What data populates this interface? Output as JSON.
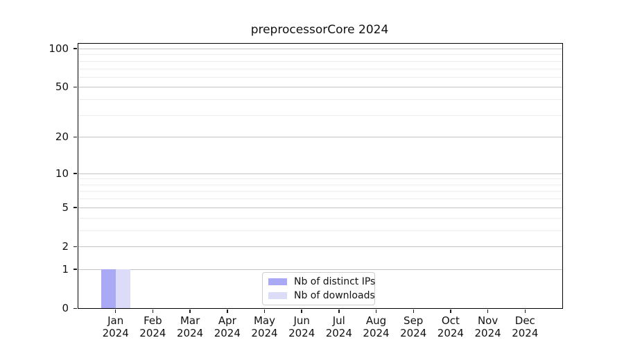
{
  "figure": {
    "background": "#ffffff"
  },
  "chart_data": {
    "type": "bar",
    "title": "preprocessorCore 2024",
    "categories": [
      {
        "month": "Jan",
        "year": "2024"
      },
      {
        "month": "Feb",
        "year": "2024"
      },
      {
        "month": "Mar",
        "year": "2024"
      },
      {
        "month": "Apr",
        "year": "2024"
      },
      {
        "month": "May",
        "year": "2024"
      },
      {
        "month": "Jun",
        "year": "2024"
      },
      {
        "month": "Jul",
        "year": "2024"
      },
      {
        "month": "Aug",
        "year": "2024"
      },
      {
        "month": "Sep",
        "year": "2024"
      },
      {
        "month": "Oct",
        "year": "2024"
      },
      {
        "month": "Nov",
        "year": "2024"
      },
      {
        "month": "Dec",
        "year": "2024"
      }
    ],
    "series": [
      {
        "name": "Nb of distinct IPs",
        "color": "#a9a9f5",
        "values": [
          1,
          0,
          0,
          0,
          0,
          0,
          0,
          0,
          0,
          0,
          0,
          0
        ]
      },
      {
        "name": "Nb of downloads",
        "color": "#dcdcf8",
        "values": [
          1,
          0,
          0,
          0,
          0,
          0,
          0,
          0,
          0,
          0,
          0,
          0
        ]
      }
    ],
    "y_axis": {
      "scale": "log1p",
      "ticks": [
        0,
        1,
        2,
        5,
        10,
        20,
        50,
        100
      ],
      "minor_gridlines": [
        3,
        4,
        6,
        7,
        8,
        9,
        30,
        40,
        60,
        70,
        80,
        90
      ],
      "range": [
        0,
        109
      ],
      "display_max": 109,
      "grid": "on"
    },
    "x_axis": {
      "grid": "off"
    },
    "legend": {
      "position": "inside-bottom-center"
    }
  }
}
